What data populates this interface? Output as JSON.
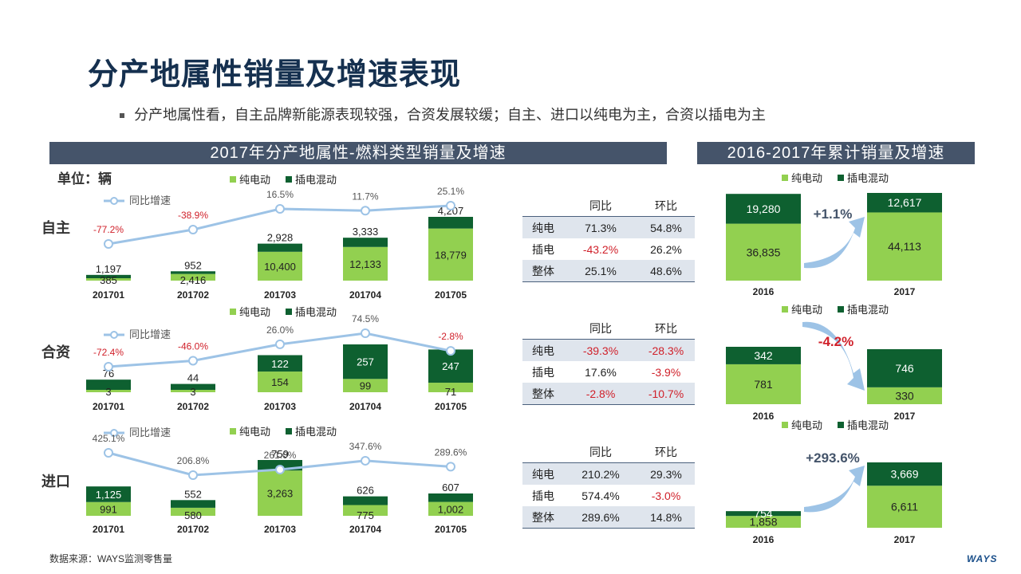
{
  "page": {
    "title": "分产地属性销量及增速表现",
    "bullet": "分产地属性看，自主品牌新能源表现较强，合资发展较缓；自主、进口以纯电为主，合资以插电为主",
    "left_header": "2017年分产地属性-燃料类型销量及增速",
    "right_header": "2016-2017年累计销量及增速",
    "unit": "单位：辆",
    "source": "数据来源：WAYS监测零售量",
    "logo": "WAYS"
  },
  "colors": {
    "bev": "#92d050",
    "phev": "#0e6030",
    "line": "#9dc3e6",
    "header_bg": "#45546a",
    "negative": "#d0202a"
  },
  "legend": {
    "bev": "纯电动",
    "phev": "插电混动",
    "growth": "同比增速"
  },
  "chart_data": [
    {
      "type": "bar",
      "stacked": true,
      "region": "自主",
      "categories": [
        "201701",
        "201702",
        "201703",
        "201704",
        "201705"
      ],
      "series": [
        {
          "name": "纯电动",
          "values": [
            385,
            2416,
            10400,
            12133,
            18779
          ]
        },
        {
          "name": "插电混动",
          "values": [
            1197,
            952,
            2928,
            3333,
            4207
          ]
        }
      ],
      "growth": {
        "name": "同比增速",
        "values": [
          -77.2,
          -38.9,
          16.5,
          11.7,
          25.1
        ],
        "labels": [
          "-77.2%",
          "-38.9%",
          "16.5%",
          "11.7%",
          "25.1%"
        ]
      }
    },
    {
      "type": "bar",
      "stacked": true,
      "region": "合资",
      "categories": [
        "201701",
        "201702",
        "201703",
        "201704",
        "201705"
      ],
      "series": [
        {
          "name": "纯电动",
          "values": [
            3,
            3,
            154,
            99,
            71
          ]
        },
        {
          "name": "插电混动",
          "values": [
            76,
            44,
            122,
            257,
            247
          ]
        }
      ],
      "growth": {
        "name": "同比增速",
        "values": [
          -72.4,
          -46.0,
          26.0,
          74.5,
          -2.8
        ],
        "labels": [
          "-72.4%",
          "-46.0%",
          "26.0%",
          "74.5%",
          "-2.8%"
        ]
      }
    },
    {
      "type": "bar",
      "stacked": true,
      "region": "进口",
      "categories": [
        "201701",
        "201702",
        "201703",
        "201704",
        "201705"
      ],
      "series": [
        {
          "name": "纯电动",
          "values": [
            991,
            580,
            3263,
            775,
            1002
          ]
        },
        {
          "name": "插电混动",
          "values": [
            1125,
            552,
            759,
            626,
            607
          ]
        }
      ],
      "growth": {
        "name": "同比增速",
        "values": [
          425.1,
          206.8,
          261.0,
          347.6,
          289.6
        ],
        "labels": [
          "425.1%",
          "206.8%",
          "261.0%",
          "347.6%",
          "289.6%"
        ]
      }
    },
    {
      "type": "bar",
      "stacked": true,
      "region": "自主",
      "categories": [
        "2016",
        "2017"
      ],
      "series": [
        {
          "name": "纯电动",
          "values": [
            36835,
            44113
          ]
        },
        {
          "name": "插电混动",
          "values": [
            19280,
            12617
          ]
        }
      ],
      "growth_label": "+1.1%"
    },
    {
      "type": "bar",
      "stacked": true,
      "region": "合资",
      "categories": [
        "2016",
        "2017"
      ],
      "series": [
        {
          "name": "纯电动",
          "values": [
            781,
            330
          ]
        },
        {
          "name": "插电混动",
          "values": [
            342,
            746
          ]
        }
      ],
      "growth_label": "-4.2%"
    },
    {
      "type": "bar",
      "stacked": true,
      "region": "进口",
      "categories": [
        "2016",
        "2017"
      ],
      "series": [
        {
          "name": "纯电动",
          "values": [
            1858,
            6611
          ]
        },
        {
          "name": "插电混动",
          "values": [
            754,
            3669
          ]
        }
      ],
      "growth_label": "+293.6%"
    }
  ],
  "tables": [
    {
      "header": [
        "",
        "同比",
        "环比"
      ],
      "rows": [
        [
          "纯电",
          "71.3%",
          "54.8%"
        ],
        [
          "插电",
          "-43.2%",
          "26.2%"
        ],
        [
          "整体",
          "25.1%",
          "48.6%"
        ]
      ]
    },
    {
      "header": [
        "",
        "同比",
        "环比"
      ],
      "rows": [
        [
          "纯电",
          "-39.3%",
          "-28.3%"
        ],
        [
          "插电",
          "17.6%",
          "-3.9%"
        ],
        [
          "整体",
          "-2.8%",
          "-10.7%"
        ]
      ]
    },
    {
      "header": [
        "",
        "同比",
        "环比"
      ],
      "rows": [
        [
          "纯电",
          "210.2%",
          "29.3%"
        ],
        [
          "插电",
          "574.4%",
          "-3.0%"
        ],
        [
          "整体",
          "289.6%",
          "14.8%"
        ]
      ]
    }
  ]
}
